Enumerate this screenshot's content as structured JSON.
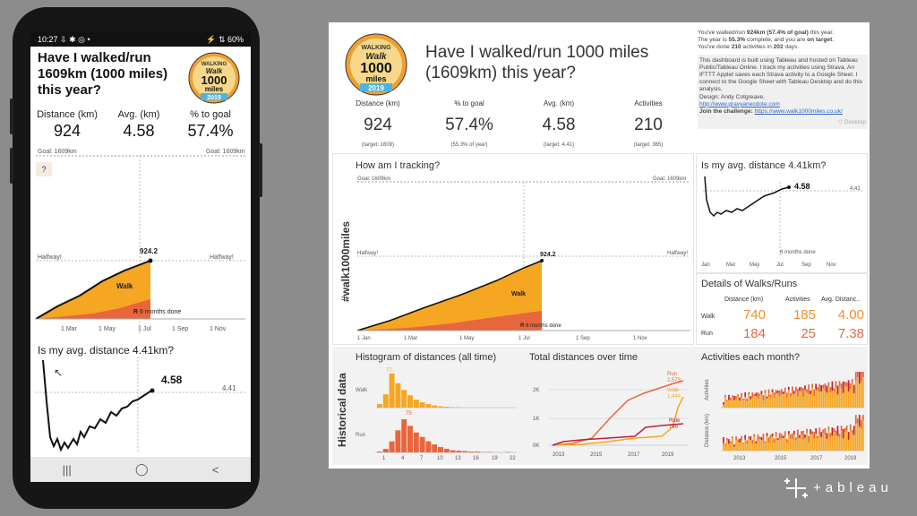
{
  "phone": {
    "status_time": "10:27",
    "status_icons": "⇩ ✱ ◎ •",
    "status_right": "⚡ ⇅ 60%",
    "title": "Have I walked/run 1609km (1000 miles) this year?",
    "kpis": [
      {
        "label": "Distance (km)",
        "value": "924"
      },
      {
        "label": "Avg. (km)",
        "value": "4.58"
      },
      {
        "label": "% to goal",
        "value": "57.4%"
      }
    ],
    "goal_label": "Goal: 1609km",
    "help": "?",
    "halfway": "Halfway!",
    "end_value": "924.2",
    "walk_label": "Walk",
    "run_label": "R",
    "six_months": "6 months done",
    "x_ticks": [
      "1 Mar",
      "1 May",
      "1 Jul",
      "1 Sep",
      "1 Nov"
    ],
    "avg_title": "Is my avg. distance 4.41km?",
    "avg_value": "4.58",
    "avg_target": "4.41",
    "nav": [
      "|||",
      "◯",
      "<"
    ]
  },
  "badge": {
    "top": "WALKING",
    "mid": "Walk",
    "num": "1000",
    "miles": "miles",
    "year": "2019"
  },
  "dashboard": {
    "title": "Have I walked/run 1000 miles (1609km) this year?",
    "info_line1a": "You've walked/run ",
    "info_bold1": "924km (57.4% of goal)",
    "info_line1b": " this year.",
    "info_line2a": "The year is ",
    "info_bold2": "55.3%",
    "info_line2b": " complete, and you are ",
    "info_bold3": "on target",
    "info_line2c": ".",
    "info_line3a": "You've done ",
    "info_bold4": "210",
    "info_line3b": " activities in ",
    "info_bold5": "202",
    "info_line3c": " days.",
    "about": "This dashboard is built using Tableau and hosted on Tableau Public/Tableau Online. I track my activities using Strava. An IFTTT Applet saves each Strava activity to a Google Sheet. I connect to the Google Sheet with Tableau Desktop and do this analysis.",
    "design_label": "Design: Andy Cotgreave,",
    "design_link": "http://www.gravyanecdote.com",
    "join_label": "Join the challenge:",
    "join_link": "https://www.walk1000miles.co.uk/",
    "desktop": "▽ Desktop",
    "kpis": [
      {
        "label": "Distance (km)",
        "value": "924",
        "target": "(target: 1609)"
      },
      {
        "label": "% to goal",
        "value": "57.4%",
        "target": "(55.3% of year)"
      },
      {
        "label": "Avg. (km)",
        "value": "4.58",
        "target": "(target: 4.41)"
      },
      {
        "label": "Activities",
        "value": "210",
        "target": "(target: 365)"
      }
    ],
    "hashtag": "#walk1000miles",
    "tracking_title": "How am I tracking?",
    "goal_label": "Goal: 1609km",
    "halfway": "Halfway!",
    "end_value": "924.2",
    "walk_label": "Walk",
    "run_label": "R",
    "six_months": "6 months done",
    "track_x_ticks": [
      "1 Jan",
      "1 Mar",
      "1 May",
      "1 Jul",
      "1 Sep",
      "1 Nov"
    ],
    "avg_title": "Is my avg. distance 4.41km?",
    "avg_value": "4.58",
    "avg_target": "4.41",
    "avg_six_months": "6 months done",
    "avg_x_ticks": [
      "Jan",
      "Mar",
      "May",
      "Jul",
      "Sep",
      "Nov"
    ],
    "details_title": "Details of Walks/Runs",
    "details_headers": [
      "Distance (km)",
      "Activities",
      "Avg. Distanc.."
    ],
    "details_rows": [
      {
        "type": "Walk",
        "distance": "740",
        "activities": "185",
        "avg": "4.00"
      },
      {
        "type": "Run",
        "distance": "184",
        "activities": "25",
        "avg": "7.38"
      }
    ],
    "historical": "Historical data",
    "hist_title": "Histogram of distances (all time)",
    "hist_walk": "Walk",
    "hist_run": "Run",
    "hist_walk_peak": "77",
    "hist_run_peak": "75",
    "hist_x_ticks": [
      "1",
      "4",
      "7",
      "10",
      "13",
      "16",
      "19",
      "22"
    ],
    "totals_title": "Total distances over time",
    "totals_y_ticks": [
      "2K",
      "1K",
      "0K"
    ],
    "totals_x_ticks": [
      "2013",
      "2015",
      "2017",
      "2019"
    ],
    "totals_labels": {
      "run": "Run",
      "run_val": "2,573",
      "walk": "Walk",
      "walk_val": "1,444",
      "ride": "Ride",
      "ride_val": "745"
    },
    "monthly_title": "Activities each month?",
    "monthly_y1": "Activities",
    "monthly_y2": "Distance (km)",
    "monthly_x_ticks": [
      "2013",
      "2015",
      "2017",
      "2019"
    ]
  },
  "tableau_logo": "+ableau",
  "colors": {
    "walk": "#f5a623",
    "run": "#e8663d",
    "ride": "#c0223b",
    "line": "#111111"
  },
  "chart_data": [
    {
      "type": "area",
      "title": "How am I tracking?",
      "x": [
        "1 Jan",
        "1 Mar",
        "1 May",
        "1 Jul"
      ],
      "series": [
        {
          "name": "Walk",
          "values": [
            0,
            180,
            430,
            740
          ]
        },
        {
          "name": "Run",
          "values": [
            0,
            40,
            110,
            184
          ]
        }
      ],
      "ylim": [
        0,
        1609
      ],
      "end_value": 924.2
    },
    {
      "type": "line",
      "title": "Is my avg. distance 4.41km?",
      "x": [
        "Jan",
        "Feb",
        "Mar",
        "Apr",
        "May",
        "Jun",
        "Jul"
      ],
      "values": [
        5.2,
        4.0,
        4.05,
        4.1,
        4.15,
        4.45,
        4.58
      ],
      "target": 4.41
    },
    {
      "type": "bar",
      "title": "Histogram of distances (all time)",
      "categories": [
        "1",
        "2",
        "3",
        "4",
        "5",
        "6",
        "7",
        "8",
        "9",
        "10",
        "11",
        "12",
        "13",
        "14",
        "15",
        "16",
        "17",
        "18",
        "19",
        "20",
        "21",
        "22"
      ],
      "series": [
        {
          "name": "Walk",
          "values": [
            8,
            30,
            77,
            55,
            40,
            28,
            18,
            12,
            8,
            5,
            3,
            2,
            1,
            1,
            0,
            0,
            0,
            0,
            0,
            0,
            0,
            0
          ]
        },
        {
          "name": "Run",
          "values": [
            2,
            8,
            25,
            50,
            75,
            60,
            45,
            35,
            25,
            18,
            12,
            8,
            5,
            4,
            3,
            2,
            2,
            1,
            1,
            0,
            0,
            1
          ]
        }
      ]
    },
    {
      "type": "line",
      "title": "Total distances over time",
      "x": [
        2013,
        2014,
        2015,
        2016,
        2017,
        2018,
        2019
      ],
      "series": [
        {
          "name": "Run",
          "values": [
            0,
            50,
            400,
            1300,
            1900,
            2300,
            2573
          ]
        },
        {
          "name": "Walk",
          "values": [
            0,
            100,
            150,
            200,
            300,
            500,
            1444
          ]
        },
        {
          "name": "Ride",
          "values": [
            0,
            150,
            200,
            250,
            300,
            745,
            745
          ]
        }
      ]
    },
    {
      "type": "bar",
      "title": "Activities each month?",
      "x": [
        "2013",
        "2015",
        "2017",
        "2019"
      ],
      "series": [
        {
          "name": "Activities"
        },
        {
          "name": "Distance (km)"
        }
      ]
    }
  ]
}
